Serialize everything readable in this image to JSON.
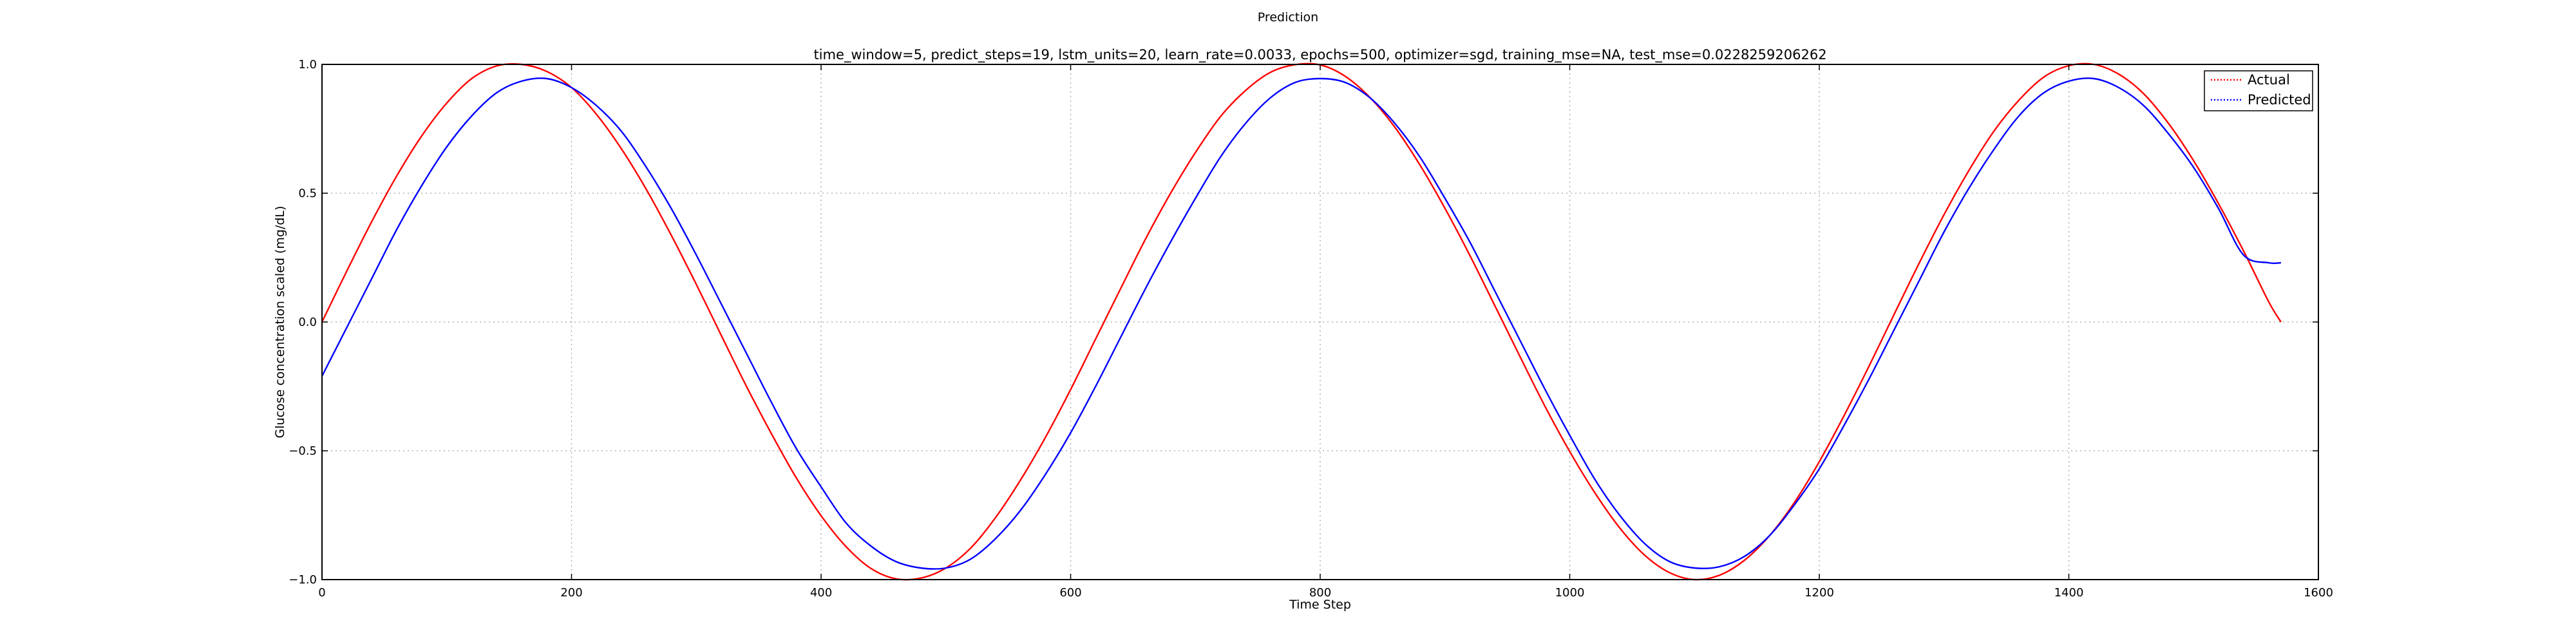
{
  "chart_data": {
    "type": "line",
    "suptitle": "Prediction",
    "title": "time_window=5, predict_steps=19, lstm_units=20, learn_rate=0.0033, epochs=500, optimizer=sgd, training_mse=NA, test_mse=0.0228259206262",
    "xlabel": "Time Step",
    "ylabel": "Glucose concentration scaled (mg/dL)",
    "xlim": [
      0,
      1600
    ],
    "ylim": [
      -1.0,
      1.0
    ],
    "xticks": [
      {
        "value": 0,
        "label": "0"
      },
      {
        "value": 200,
        "label": "200"
      },
      {
        "value": 400,
        "label": "400"
      },
      {
        "value": 600,
        "label": "600"
      },
      {
        "value": 800,
        "label": "800"
      },
      {
        "value": 1000,
        "label": "1000"
      },
      {
        "value": 1200,
        "label": "1200"
      },
      {
        "value": 1400,
        "label": "1400"
      },
      {
        "value": 1600,
        "label": "1600"
      }
    ],
    "yticks": [
      {
        "value": -1.0,
        "label": "−1.0"
      },
      {
        "value": -0.5,
        "label": "−0.5"
      },
      {
        "value": 0.0,
        "label": "0.0"
      },
      {
        "value": 0.5,
        "label": "0.5"
      },
      {
        "value": 1.0,
        "label": "1.0"
      }
    ],
    "grid": true,
    "legend_position": "top-right",
    "series": [
      {
        "name": "Actual",
        "color": "#ff0000",
        "x": [
          0,
          20,
          40,
          60,
          80,
          100,
          120,
          140,
          160,
          180,
          200,
          220,
          240,
          260,
          280,
          300,
          320,
          340,
          360,
          380,
          400,
          420,
          440,
          460,
          480,
          500,
          520,
          540,
          560,
          580,
          600,
          620,
          640,
          660,
          680,
          700,
          720,
          740,
          760,
          780,
          800,
          820,
          840,
          860,
          880,
          900,
          920,
          940,
          960,
          980,
          1000,
          1020,
          1040,
          1060,
          1080,
          1100,
          1120,
          1140,
          1160,
          1180,
          1200,
          1220,
          1240,
          1260,
          1280,
          1300,
          1320,
          1340,
          1360,
          1380,
          1400,
          1420,
          1440,
          1460,
          1480,
          1500,
          1520,
          1540,
          1560,
          1570
        ],
        "y": [
          0.0,
          0.199,
          0.391,
          0.568,
          0.723,
          0.85,
          0.945,
          0.994,
          1.0,
          0.973,
          0.91,
          0.806,
          0.672,
          0.514,
          0.336,
          0.146,
          -0.052,
          -0.248,
          -0.432,
          -0.604,
          -0.752,
          -0.872,
          -0.957,
          -0.997,
          -0.994,
          -0.955,
          -0.877,
          -0.758,
          -0.612,
          -0.446,
          -0.262,
          -0.066,
          0.129,
          0.322,
          0.499,
          0.658,
          0.797,
          0.898,
          0.969,
          0.999,
          0.998,
          0.954,
          0.871,
          0.755,
          0.609,
          0.441,
          0.258,
          0.063,
          -0.133,
          -0.326,
          -0.503,
          -0.662,
          -0.799,
          -0.905,
          -0.973,
          -1.0,
          -0.983,
          -0.925,
          -0.83,
          -0.701,
          -0.542,
          -0.362,
          -0.17,
          0.03,
          0.228,
          0.417,
          0.589,
          0.741,
          0.861,
          0.951,
          0.995,
          1.0,
          0.962,
          0.886,
          0.77,
          0.626,
          0.459,
          0.276,
          0.08,
          0.0
        ]
      },
      {
        "name": "Predicted",
        "color": "#0000ff",
        "x": [
          0,
          20,
          40,
          60,
          80,
          100,
          120,
          140,
          160,
          180,
          200,
          220,
          240,
          260,
          280,
          300,
          320,
          340,
          360,
          380,
          400,
          420,
          440,
          460,
          480,
          500,
          520,
          540,
          560,
          580,
          600,
          620,
          640,
          660,
          680,
          700,
          720,
          740,
          760,
          780,
          800,
          820,
          840,
          860,
          880,
          900,
          920,
          940,
          960,
          980,
          1000,
          1020,
          1040,
          1060,
          1080,
          1100,
          1120,
          1140,
          1160,
          1180,
          1200,
          1220,
          1240,
          1260,
          1280,
          1300,
          1320,
          1340,
          1360,
          1380,
          1400,
          1420,
          1440,
          1460,
          1480,
          1500,
          1520,
          1540,
          1560,
          1570
        ],
        "y": [
          -0.21,
          -0.02,
          0.17,
          0.36,
          0.53,
          0.68,
          0.8,
          0.89,
          0.935,
          0.945,
          0.91,
          0.84,
          0.74,
          0.6,
          0.44,
          0.26,
          0.07,
          -0.12,
          -0.31,
          -0.49,
          -0.64,
          -0.78,
          -0.87,
          -0.93,
          -0.955,
          -0.955,
          -0.92,
          -0.84,
          -0.73,
          -0.59,
          -0.43,
          -0.25,
          -0.06,
          0.13,
          0.31,
          0.48,
          0.64,
          0.77,
          0.87,
          0.93,
          0.945,
          0.93,
          0.87,
          0.77,
          0.64,
          0.48,
          0.31,
          0.12,
          -0.07,
          -0.26,
          -0.44,
          -0.61,
          -0.75,
          -0.86,
          -0.93,
          -0.955,
          -0.95,
          -0.91,
          -0.83,
          -0.71,
          -0.57,
          -0.4,
          -0.22,
          -0.03,
          0.16,
          0.35,
          0.52,
          0.67,
          0.8,
          0.89,
          0.935,
          0.945,
          0.91,
          0.84,
          0.73,
          0.6,
          0.44,
          0.26,
          0.23,
          0.23
        ]
      }
    ]
  }
}
